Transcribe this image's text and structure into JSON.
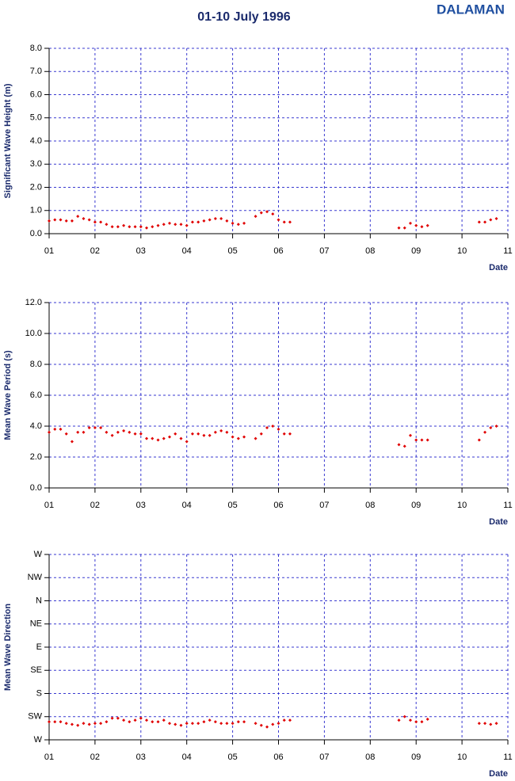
{
  "header": {
    "title": "01-10 July 1996",
    "station": "DALAMAN"
  },
  "chart_data": [
    {
      "type": "scatter",
      "ylabel": "Significant Wave Height (m)",
      "xlabel": "Date",
      "grid": true,
      "xlim": [
        1,
        11
      ],
      "xticks": [
        {
          "value": 1,
          "label": "01"
        },
        {
          "value": 2,
          "label": "02"
        },
        {
          "value": 3,
          "label": "03"
        },
        {
          "value": 4,
          "label": "04"
        },
        {
          "value": 5,
          "label": "05"
        },
        {
          "value": 6,
          "label": "06"
        },
        {
          "value": 7,
          "label": "07"
        },
        {
          "value": 8,
          "label": "08"
        },
        {
          "value": 9,
          "label": "09"
        },
        10,
        11
      ],
      "ylim": [
        0,
        8
      ],
      "yticks": [
        {
          "value": 0,
          "label": "0.0"
        },
        {
          "value": 1,
          "label": "1.0"
        },
        {
          "value": 2,
          "label": "2.0"
        },
        {
          "value": 3,
          "label": "3.0"
        },
        {
          "value": 4,
          "label": "4.0"
        },
        {
          "value": 5,
          "label": "5.0"
        },
        {
          "value": 6,
          "label": "6.0"
        },
        {
          "value": 7,
          "label": "7.0"
        },
        {
          "value": 8,
          "label": "8.0"
        }
      ],
      "color": "#e00000",
      "x": [
        1,
        1.125,
        1.25,
        1.375,
        1.5,
        1.625,
        1.75,
        1.875,
        2,
        2.125,
        2.25,
        2.375,
        2.5,
        2.625,
        2.75,
        2.875,
        3,
        3.125,
        3.25,
        3.375,
        3.5,
        3.625,
        3.75,
        3.875,
        4,
        4.125,
        4.25,
        4.375,
        4.5,
        4.625,
        4.75,
        4.875,
        5,
        5.125,
        5.25,
        5.5,
        5.625,
        5.75,
        5.875,
        6,
        6.125,
        6.25,
        8.625,
        8.75,
        8.875,
        9,
        9.125,
        9.25,
        10.375,
        10.5,
        10.625,
        10.75
      ],
      "values": [
        0.55,
        0.6,
        0.6,
        0.55,
        0.55,
        0.75,
        0.65,
        0.6,
        0.5,
        0.5,
        0.4,
        0.3,
        0.3,
        0.35,
        0.3,
        0.3,
        0.3,
        0.25,
        0.3,
        0.35,
        0.4,
        0.45,
        0.4,
        0.4,
        0.35,
        0.5,
        0.5,
        0.55,
        0.6,
        0.65,
        0.65,
        0.55,
        0.45,
        0.4,
        0.45,
        0.75,
        0.9,
        0.95,
        0.85,
        0.6,
        0.5,
        0.5,
        0.25,
        0.25,
        0.45,
        0.35,
        0.3,
        0.35,
        0.5,
        0.5,
        0.6,
        0.65
      ]
    },
    {
      "type": "scatter",
      "ylabel": "Mean Wave Period (s)",
      "xlabel": "Date",
      "grid": true,
      "xlim": [
        1,
        11
      ],
      "xticks": [
        {
          "value": 1,
          "label": "01"
        },
        {
          "value": 2,
          "label": "02"
        },
        {
          "value": 3,
          "label": "03"
        },
        {
          "value": 4,
          "label": "04"
        },
        {
          "value": 5,
          "label": "05"
        },
        {
          "value": 6,
          "label": "06"
        },
        {
          "value": 7,
          "label": "07"
        },
        {
          "value": 8,
          "label": "08"
        },
        {
          "value": 9,
          "label": "09"
        },
        10,
        11
      ],
      "ylim": [
        0,
        12
      ],
      "yticks": [
        {
          "value": 0,
          "label": "0.0"
        },
        {
          "value": 2,
          "label": "2.0"
        },
        {
          "value": 4,
          "label": "4.0"
        },
        {
          "value": 6,
          "label": "6.0"
        },
        {
          "value": 8,
          "label": "8.0"
        },
        {
          "value": 10,
          "label": "10.0"
        },
        {
          "value": 12,
          "label": "12.0"
        }
      ],
      "color": "#e00000",
      "x": [
        1,
        1.125,
        1.25,
        1.375,
        1.5,
        1.625,
        1.75,
        1.875,
        2,
        2.125,
        2.25,
        2.375,
        2.5,
        2.625,
        2.75,
        2.875,
        3,
        3.125,
        3.25,
        3.375,
        3.5,
        3.625,
        3.75,
        3.875,
        4,
        4.125,
        4.25,
        4.375,
        4.5,
        4.625,
        4.75,
        4.875,
        5,
        5.125,
        5.25,
        5.5,
        5.625,
        5.75,
        5.875,
        6,
        6.125,
        6.25,
        8.625,
        8.75,
        8.875,
        9,
        9.125,
        9.25,
        10.375,
        10.5,
        10.625,
        10.75
      ],
      "values": [
        3.6,
        3.8,
        3.8,
        3.5,
        3.0,
        3.6,
        3.6,
        3.9,
        3.9,
        3.9,
        3.6,
        3.4,
        3.6,
        3.7,
        3.6,
        3.5,
        3.5,
        3.2,
        3.2,
        3.1,
        3.2,
        3.3,
        3.5,
        3.2,
        3.0,
        3.5,
        3.5,
        3.4,
        3.4,
        3.6,
        3.7,
        3.6,
        3.3,
        3.2,
        3.3,
        3.2,
        3.5,
        3.9,
        4.0,
        3.8,
        3.5,
        3.5,
        2.8,
        2.7,
        3.4,
        3.1,
        3.1,
        3.1,
        3.1,
        3.6,
        3.9,
        4.0
      ]
    },
    {
      "type": "scatter",
      "ylabel": "Mean Wave Direction",
      "xlabel": "Date",
      "grid": true,
      "xlim": [
        1,
        11
      ],
      "xticks": [
        {
          "value": 1,
          "label": "01"
        },
        {
          "value": 2,
          "label": "02"
        },
        {
          "value": 3,
          "label": "03"
        },
        {
          "value": 4,
          "label": "04"
        },
        {
          "value": 5,
          "label": "05"
        },
        {
          "value": 6,
          "label": "06"
        },
        {
          "value": 7,
          "label": "07"
        },
        {
          "value": 8,
          "label": "08"
        },
        {
          "value": 9,
          "label": "09"
        },
        10,
        11
      ],
      "ylim": [
        270,
        -90
      ],
      "yticks": [
        {
          "value": 270,
          "label": "W"
        },
        {
          "value": 225,
          "label": "SW"
        },
        {
          "value": 180,
          "label": "S"
        },
        {
          "value": 135,
          "label": "SE"
        },
        {
          "value": 90,
          "label": "E"
        },
        {
          "value": 45,
          "label": "NE"
        },
        {
          "value": 0,
          "label": "N"
        },
        {
          "value": -45,
          "label": "NW"
        },
        {
          "value": -90,
          "label": "W"
        }
      ],
      "color": "#e00000",
      "x": [
        1,
        1.125,
        1.25,
        1.375,
        1.5,
        1.625,
        1.75,
        1.875,
        2,
        2.125,
        2.25,
        2.375,
        2.5,
        2.625,
        2.75,
        2.875,
        3,
        3.125,
        3.25,
        3.375,
        3.5,
        3.625,
        3.75,
        3.875,
        4,
        4.125,
        4.25,
        4.375,
        4.5,
        4.625,
        4.75,
        4.875,
        5,
        5.125,
        5.25,
        5.5,
        5.625,
        5.75,
        5.875,
        6,
        6.125,
        6.25,
        8.625,
        8.75,
        8.875,
        9,
        9.125,
        9.25,
        10.375,
        10.5,
        10.625,
        10.75
      ],
      "values": [
        235,
        235,
        235,
        238,
        240,
        242,
        238,
        240,
        238,
        238,
        235,
        228,
        228,
        232,
        235,
        232,
        228,
        232,
        235,
        235,
        232,
        238,
        240,
        242,
        238,
        238,
        238,
        235,
        232,
        235,
        238,
        238,
        238,
        235,
        235,
        238,
        242,
        245,
        240,
        238,
        232,
        232,
        232,
        225,
        232,
        235,
        235,
        230,
        238,
        238,
        240,
        238
      ]
    }
  ]
}
